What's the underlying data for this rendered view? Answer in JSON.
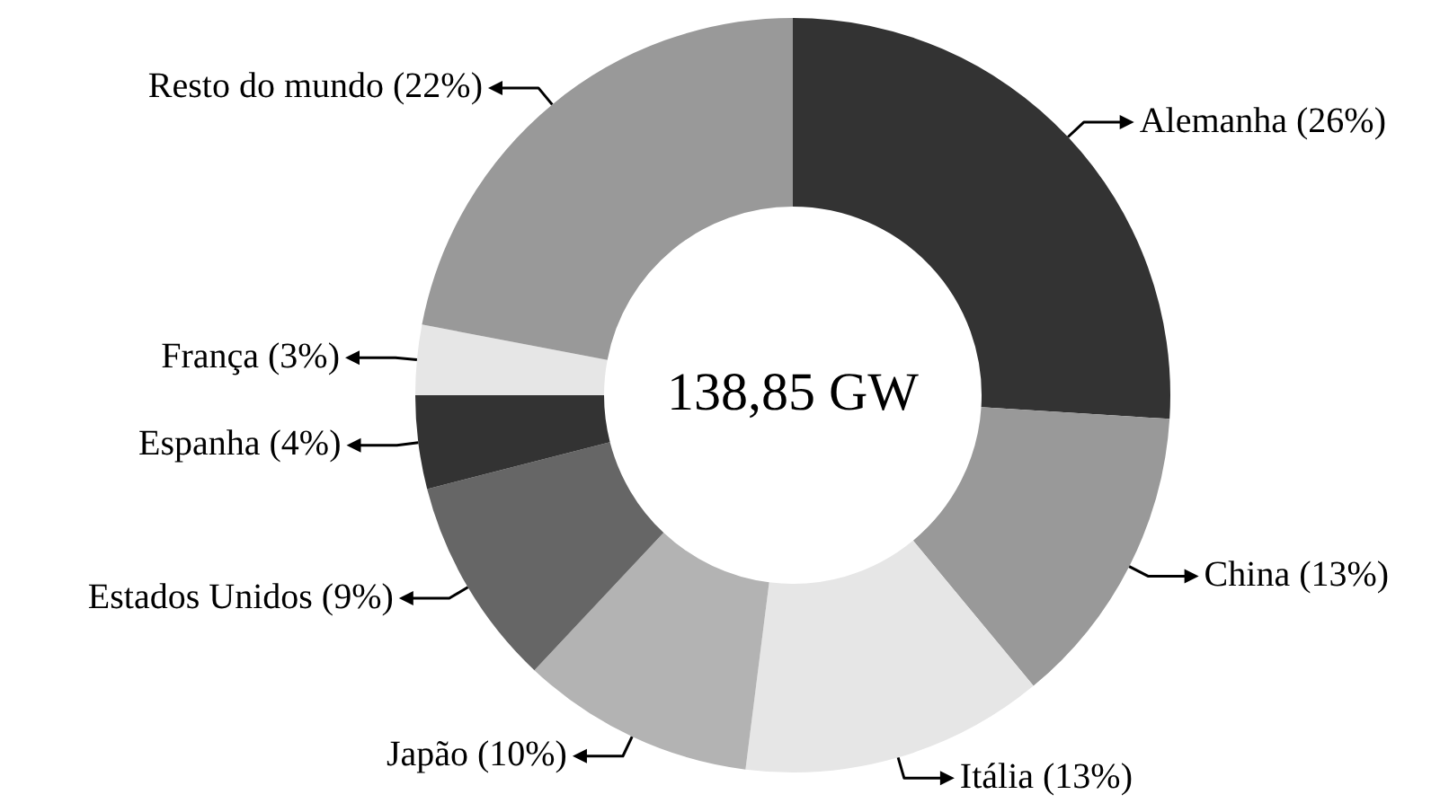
{
  "chart_data": {
    "type": "donut",
    "categories": [
      "Alemanha (26%)",
      "China (13%)",
      "Itália (13%)",
      "Japão (10%)",
      "Estados Unidos (9%)",
      "Espanha (4%)",
      "França (3%)",
      "Resto do mundo (22%)"
    ],
    "values": [
      26,
      13,
      13,
      10,
      9,
      4,
      3,
      22
    ],
    "colors": [
      "#333333",
      "#999999",
      "#e6e6e6",
      "#b3b3b3",
      "#666666",
      "#333333",
      "#e6e6e6",
      "#999999"
    ],
    "annotations": [
      "138,85 GW"
    ]
  }
}
